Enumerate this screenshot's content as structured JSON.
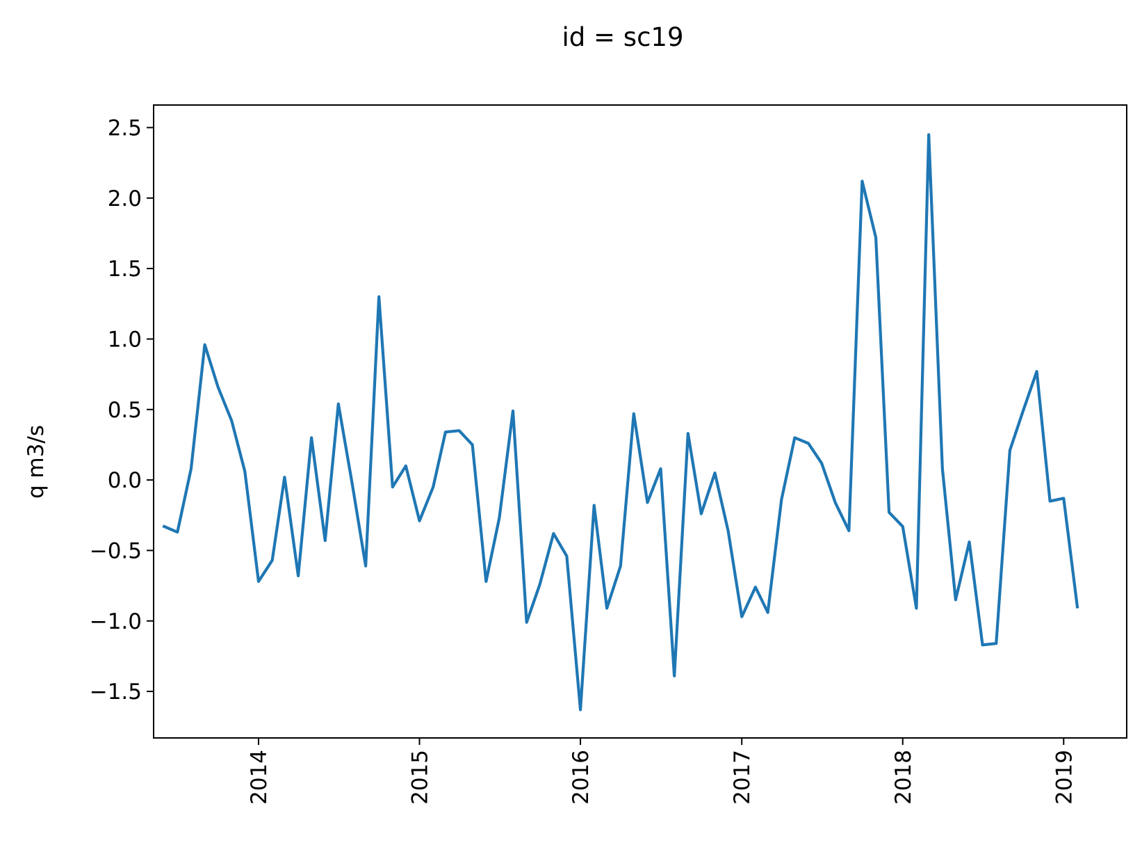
{
  "chart_data": {
    "type": "line",
    "title": "id = sc19",
    "xlabel": "",
    "ylabel": "q m3/s",
    "x_ticks": [
      "2014",
      "2015",
      "2016",
      "2017",
      "2018",
      "2019"
    ],
    "y_ticks": [
      "2.5",
      "2.0",
      "1.5",
      "1.0",
      "0.5",
      "0.0",
      "−0.5",
      "−1.0",
      "−1.5"
    ],
    "xlim": [
      "2013-05-08",
      "2019-05-24"
    ],
    "ylim": [
      -1.83,
      2.66
    ],
    "grid": false,
    "legend": "none",
    "series": [
      {
        "color": "#1f77b4",
        "points": [
          {
            "date": "2013-06-01",
            "q": -0.33
          },
          {
            "date": "2013-07-01",
            "q": -0.37
          },
          {
            "date": "2013-08-01",
            "q": 0.08
          },
          {
            "date": "2013-09-01",
            "q": 0.96
          },
          {
            "date": "2013-10-01",
            "q": 0.66
          },
          {
            "date": "2013-11-01",
            "q": 0.42
          },
          {
            "date": "2013-12-01",
            "q": 0.06
          },
          {
            "date": "2014-01-01",
            "q": -0.72
          },
          {
            "date": "2014-02-01",
            "q": -0.57
          },
          {
            "date": "2014-03-01",
            "q": 0.02
          },
          {
            "date": "2014-04-01",
            "q": -0.68
          },
          {
            "date": "2014-05-01",
            "q": 0.3
          },
          {
            "date": "2014-06-01",
            "q": -0.43
          },
          {
            "date": "2014-07-01",
            "q": 0.54
          },
          {
            "date": "2014-08-01",
            "q": -0.02
          },
          {
            "date": "2014-09-01",
            "q": -0.61
          },
          {
            "date": "2014-10-01",
            "q": 1.3
          },
          {
            "date": "2014-11-01",
            "q": -0.05
          },
          {
            "date": "2014-12-01",
            "q": 0.1
          },
          {
            "date": "2015-01-01",
            "q": -0.29
          },
          {
            "date": "2015-02-01",
            "q": -0.05
          },
          {
            "date": "2015-03-01",
            "q": 0.34
          },
          {
            "date": "2015-04-01",
            "q": 0.35
          },
          {
            "date": "2015-05-01",
            "q": 0.25
          },
          {
            "date": "2015-06-01",
            "q": -0.72
          },
          {
            "date": "2015-07-01",
            "q": -0.27
          },
          {
            "date": "2015-08-01",
            "q": 0.49
          },
          {
            "date": "2015-09-01",
            "q": -1.01
          },
          {
            "date": "2015-10-01",
            "q": -0.74
          },
          {
            "date": "2015-11-01",
            "q": -0.38
          },
          {
            "date": "2015-12-01",
            "q": -0.54
          },
          {
            "date": "2016-01-01",
            "q": -1.63
          },
          {
            "date": "2016-02-01",
            "q": -0.18
          },
          {
            "date": "2016-03-01",
            "q": -0.91
          },
          {
            "date": "2016-04-01",
            "q": -0.61
          },
          {
            "date": "2016-05-01",
            "q": 0.47
          },
          {
            "date": "2016-06-01",
            "q": -0.16
          },
          {
            "date": "2016-07-01",
            "q": 0.08
          },
          {
            "date": "2016-08-01",
            "q": -1.39
          },
          {
            "date": "2016-09-01",
            "q": 0.33
          },
          {
            "date": "2016-10-01",
            "q": -0.24
          },
          {
            "date": "2016-11-01",
            "q": 0.05
          },
          {
            "date": "2016-12-01",
            "q": -0.36
          },
          {
            "date": "2017-01-01",
            "q": -0.97
          },
          {
            "date": "2017-02-01",
            "q": -0.76
          },
          {
            "date": "2017-03-01",
            "q": -0.94
          },
          {
            "date": "2017-04-01",
            "q": -0.14
          },
          {
            "date": "2017-05-01",
            "q": 0.3
          },
          {
            "date": "2017-06-01",
            "q": 0.26
          },
          {
            "date": "2017-07-01",
            "q": 0.12
          },
          {
            "date": "2017-08-01",
            "q": -0.16
          },
          {
            "date": "2017-09-01",
            "q": -0.36
          },
          {
            "date": "2017-10-01",
            "q": 2.12
          },
          {
            "date": "2017-11-01",
            "q": 1.72
          },
          {
            "date": "2017-12-01",
            "q": -0.23
          },
          {
            "date": "2018-01-01",
            "q": -0.33
          },
          {
            "date": "2018-02-01",
            "q": -0.91
          },
          {
            "date": "2018-03-01",
            "q": 2.45
          },
          {
            "date": "2018-04-01",
            "q": 0.08
          },
          {
            "date": "2018-05-01",
            "q": -0.85
          },
          {
            "date": "2018-06-01",
            "q": -0.44
          },
          {
            "date": "2018-07-01",
            "q": -1.17
          },
          {
            "date": "2018-08-01",
            "q": -1.16
          },
          {
            "date": "2018-09-01",
            "q": 0.21
          },
          {
            "date": "2018-10-01",
            "q": 0.49
          },
          {
            "date": "2018-11-01",
            "q": 0.77
          },
          {
            "date": "2018-12-01",
            "q": -0.15
          },
          {
            "date": "2019-01-01",
            "q": -0.13
          },
          {
            "date": "2019-02-01",
            "q": -0.9
          }
        ]
      }
    ]
  }
}
